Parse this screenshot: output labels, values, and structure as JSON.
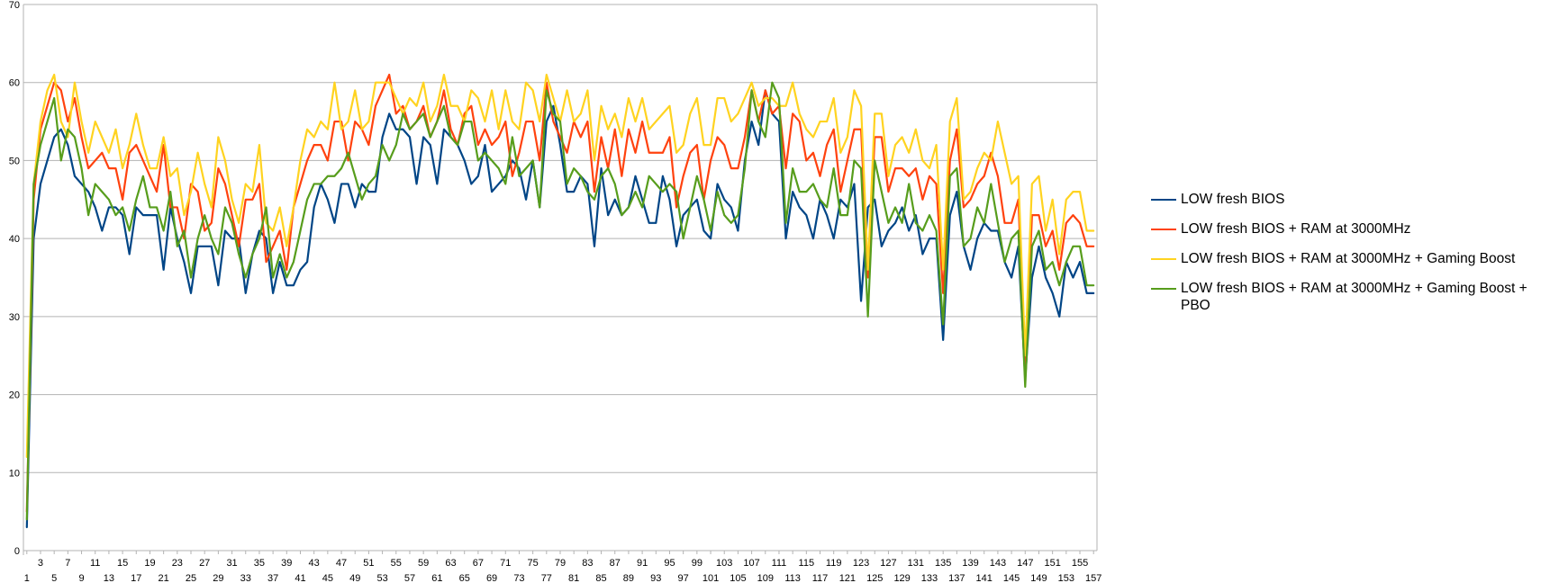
{
  "chart_data": {
    "type": "line",
    "title": "",
    "xlabel": "",
    "ylabel": "",
    "ylim": [
      0,
      70
    ],
    "yticks": [
      0,
      10,
      20,
      30,
      40,
      50,
      60,
      70
    ],
    "x_start": 1,
    "x_end": 157,
    "grid": "horizontal",
    "legend_position": "right",
    "series": [
      {
        "name": "LOW fresh BIOS",
        "color": "#004586",
        "values": [
          3,
          40,
          47,
          50,
          53,
          54,
          52,
          48,
          47,
          46,
          44,
          41,
          44,
          44,
          43,
          38,
          44,
          43,
          43,
          43,
          36,
          44,
          40,
          37,
          33,
          39,
          39,
          39,
          34,
          41,
          40,
          40,
          33,
          38,
          41,
          40,
          33,
          37,
          34,
          34,
          36,
          37,
          44,
          47,
          45,
          42,
          47,
          47,
          44,
          47,
          46,
          46,
          53,
          56,
          54,
          54,
          53,
          47,
          53,
          52,
          47,
          54,
          53,
          52,
          50,
          47,
          48,
          52,
          46,
          47,
          48,
          50,
          49,
          45,
          50,
          44,
          55,
          57,
          52,
          46,
          46,
          48,
          47,
          39,
          49,
          43,
          45,
          43,
          44,
          48,
          45,
          42,
          42,
          48,
          45,
          39,
          43,
          44,
          45,
          41,
          40,
          47,
          45,
          44,
          41,
          50,
          55,
          52,
          59,
          56,
          55,
          40,
          46,
          44,
          43,
          40,
          45,
          43,
          40,
          45,
          44,
          47,
          32,
          44,
          45,
          39,
          41,
          42,
          44,
          41,
          43,
          38,
          40,
          40,
          27,
          43,
          46,
          39,
          36,
          40,
          42,
          41,
          41,
          37,
          35,
          39,
          22,
          35,
          39,
          35,
          33,
          30,
          37,
          35,
          37,
          33,
          33
        ]
      },
      {
        "name": "LOW fresh BIOS + RAM at 3000MHz",
        "color": "#ff420e",
        "values": [
          5,
          45,
          54,
          57,
          60,
          59,
          55,
          58,
          53,
          49,
          50,
          51,
          49,
          49,
          45,
          51,
          52,
          50,
          48,
          46,
          52,
          44,
          44,
          40,
          47,
          46,
          41,
          42,
          49,
          47,
          43,
          39,
          45,
          45,
          47,
          37,
          39,
          41,
          36,
          44,
          47,
          50,
          52,
          52,
          50,
          55,
          55,
          50,
          55,
          54,
          52,
          57,
          59,
          61,
          56,
          57,
          54,
          55,
          57,
          53,
          55,
          59,
          54,
          52,
          56,
          57,
          52,
          54,
          52,
          53,
          55,
          48,
          51,
          55,
          55,
          50,
          60,
          55,
          53,
          51,
          55,
          53,
          55,
          46,
          53,
          49,
          54,
          48,
          54,
          51,
          55,
          51,
          51,
          51,
          53,
          44,
          48,
          51,
          52,
          45,
          50,
          53,
          52,
          49,
          49,
          53,
          59,
          55,
          59,
          56,
          57,
          49,
          56,
          55,
          50,
          51,
          48,
          52,
          54,
          46,
          50,
          54,
          54,
          35,
          53,
          53,
          46,
          49,
          49,
          48,
          49,
          45,
          48,
          47,
          33,
          50,
          54,
          44,
          45,
          47,
          48,
          51,
          48,
          42,
          42,
          45,
          23,
          43,
          43,
          39,
          41,
          36,
          42,
          43,
          42,
          39,
          39
        ]
      },
      {
        "name": "LOW fresh BIOS + RAM at 3000MHz + Gaming Boost",
        "color": "#ffd320",
        "values": [
          12,
          47,
          55,
          59,
          61,
          55,
          53,
          60,
          55,
          51,
          55,
          53,
          51,
          54,
          49,
          52,
          56,
          52,
          49,
          49,
          53,
          48,
          49,
          43,
          46,
          51,
          47,
          44,
          53,
          50,
          45,
          42,
          47,
          46,
          52,
          42,
          41,
          44,
          39,
          44,
          50,
          54,
          53,
          55,
          54,
          60,
          54,
          55,
          59,
          54,
          55,
          60,
          60,
          60,
          58,
          56,
          58,
          57,
          60,
          55,
          57,
          61,
          57,
          57,
          55,
          59,
          58,
          55,
          59,
          54,
          59,
          55,
          54,
          60,
          59,
          55,
          61,
          58,
          55,
          59,
          55,
          56,
          59,
          50,
          57,
          54,
          56,
          53,
          58,
          55,
          58,
          54,
          55,
          56,
          57,
          51,
          52,
          56,
          58,
          52,
          52,
          58,
          58,
          55,
          56,
          58,
          60,
          57,
          58,
          58,
          57,
          57,
          60,
          56,
          54,
          53,
          55,
          55,
          58,
          51,
          53,
          59,
          57,
          36,
          56,
          56,
          48,
          52,
          53,
          51,
          54,
          50,
          49,
          52,
          36,
          55,
          58,
          45,
          46,
          49,
          51,
          50,
          55,
          51,
          47,
          48,
          25,
          47,
          48,
          41,
          45,
          38,
          45,
          46,
          46,
          41,
          41
        ]
      },
      {
        "name": "LOW fresh BIOS + RAM at 3000MHz + Gaming Boost + PBO",
        "color": "#579d1c",
        "values": [
          4,
          47,
          52,
          55,
          58,
          50,
          54,
          53,
          49,
          43,
          47,
          46,
          45,
          43,
          44,
          41,
          45,
          48,
          44,
          44,
          41,
          46,
          39,
          41,
          35,
          40,
          43,
          40,
          38,
          44,
          42,
          38,
          35,
          38,
          40,
          44,
          35,
          38,
          35,
          37,
          41,
          45,
          47,
          47,
          48,
          48,
          49,
          51,
          48,
          45,
          47,
          48,
          52,
          50,
          52,
          56,
          54,
          55,
          56,
          53,
          55,
          57,
          53,
          52,
          55,
          55,
          50,
          51,
          50,
          49,
          47,
          53,
          48,
          49,
          50,
          44,
          59,
          56,
          55,
          47,
          49,
          48,
          46,
          45,
          48,
          49,
          47,
          43,
          44,
          46,
          44,
          48,
          47,
          46,
          47,
          46,
          40,
          44,
          48,
          45,
          41,
          46,
          43,
          42,
          43,
          49,
          59,
          55,
          53,
          60,
          58,
          42,
          49,
          46,
          46,
          47,
          45,
          44,
          49,
          43,
          43,
          50,
          49,
          30,
          50,
          46,
          42,
          44,
          42,
          47,
          42,
          41,
          43,
          41,
          29,
          48,
          49,
          39,
          40,
          44,
          42,
          47,
          42,
          37,
          40,
          41,
          21,
          39,
          41,
          36,
          37,
          34,
          37,
          39,
          39,
          34,
          34
        ]
      }
    ]
  }
}
